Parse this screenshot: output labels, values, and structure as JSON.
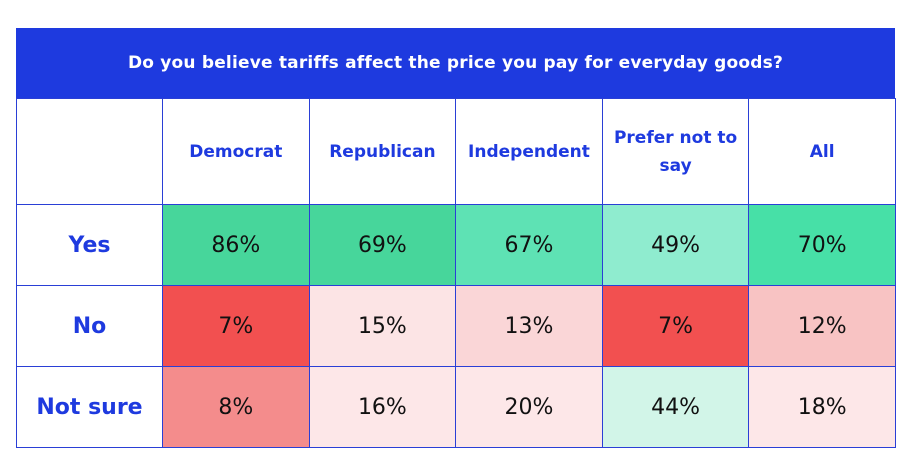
{
  "title": "Do you believe tariffs affect the price you pay for everyday goods?",
  "chart_data": {
    "type": "table",
    "title": "Do you believe tariffs affect the price you pay for everyday goods?",
    "columns": [
      "Democrat",
      "Republican",
      "Independent",
      "Prefer not to say",
      "All"
    ],
    "rows": [
      {
        "label": "Yes",
        "values": [
          "86%",
          "69%",
          "67%",
          "49%",
          "70%"
        ],
        "colors": [
          "#47d69b",
          "#47d69b",
          "#5ee2b4",
          "#8feccf",
          "#47e0a7"
        ]
      },
      {
        "label": "No",
        "values": [
          "7%",
          "15%",
          "13%",
          "7%",
          "12%"
        ],
        "colors": [
          "#f25050",
          "#fce4e5",
          "#fad6d7",
          "#f25050",
          "#f8c3c3"
        ]
      },
      {
        "label": "Not sure",
        "values": [
          "8%",
          "16%",
          "20%",
          "44%",
          "18%"
        ],
        "colors": [
          "#f48c8c",
          "#fde7e8",
          "#fde7e8",
          "#d2f5e8",
          "#fde7e8"
        ]
      }
    ]
  }
}
